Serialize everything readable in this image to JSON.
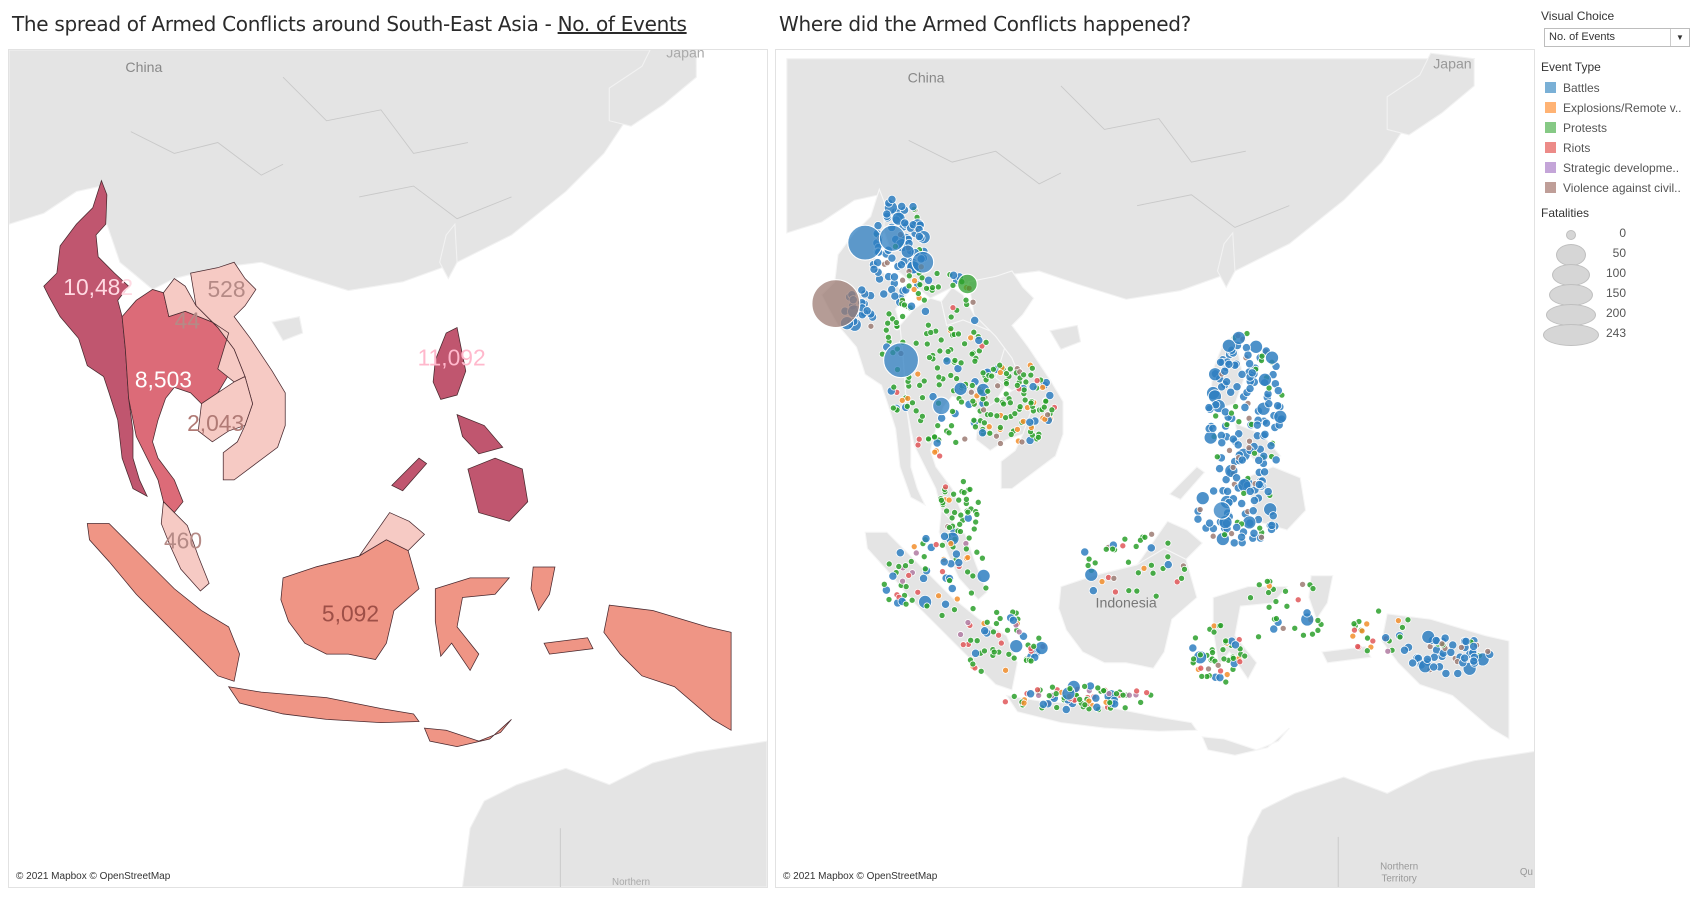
{
  "left": {
    "title_prefix": "The spread of Armed Conflicts around South-East Asia - ",
    "title_link": "No. of Events",
    "map_labels": {
      "china": "China",
      "japan": "Japan",
      "northern": "Northern"
    },
    "countries": [
      {
        "name": "Myanmar",
        "value": "10,482",
        "fill": "#c0566f",
        "label_color": "#ffd9e2"
      },
      {
        "name": "Philippines",
        "value": "11,092",
        "fill": "#c0566f",
        "label_color": "#ffb8cc"
      },
      {
        "name": "Thailand",
        "value": "8,503",
        "fill": "#dc6b78",
        "label_color": "#ffffff"
      },
      {
        "name": "Vietnam",
        "value": "528",
        "fill": "#f6cac4",
        "label_color": "#b58a86"
      },
      {
        "name": "Laos",
        "value": "44",
        "fill": "#f6cac4",
        "label_color": "#b58a86"
      },
      {
        "name": "Cambodia",
        "value": "2,043",
        "fill": "#f6cac4",
        "label_color": "#b07a75"
      },
      {
        "name": "Malaysia",
        "value": "460",
        "fill": "#f6cac4",
        "label_color": "#b58a86"
      },
      {
        "name": "Indonesia",
        "value": "5,092",
        "fill": "#ef9585",
        "label_color": "#9e4f47"
      }
    ],
    "attribution": "© 2021 Mapbox © OpenStreetMap"
  },
  "right": {
    "title": "Where did the Armed Conflicts happened?",
    "map_labels": {
      "china": "China",
      "japan": "Japan",
      "indonesia": "Indonesia",
      "northern": "Northern",
      "territory": "Territory",
      "q": "Qu"
    },
    "attribution": "© 2021 Mapbox © OpenStreetMap"
  },
  "legend": {
    "visual_choice_label": "Visual Choice",
    "visual_choice_value": "No. of Events",
    "event_type_label": "Event Type",
    "event_types": [
      {
        "label": "Battles",
        "color": "#7ab0d6"
      },
      {
        "label": "Explosions/Remote v..",
        "color": "#ffb374"
      },
      {
        "label": "Protests",
        "color": "#86c985"
      },
      {
        "label": "Riots",
        "color": "#ec8b88"
      },
      {
        "label": "Strategic developme..",
        "color": "#c4a5d8"
      },
      {
        "label": "Violence against civil..",
        "color": "#bf9e98"
      }
    ],
    "fatalities_label": "Fatalities",
    "fatalities": [
      "0",
      "50",
      "100",
      "150",
      "200",
      "243"
    ]
  },
  "dot_colors": {
    "battles": "#2f7fc1",
    "explosions": "#f28e2b",
    "protests": "#2ca02c",
    "riots": "#e15759",
    "strategic": "#b07aa1",
    "violence": "#9c7b73"
  }
}
